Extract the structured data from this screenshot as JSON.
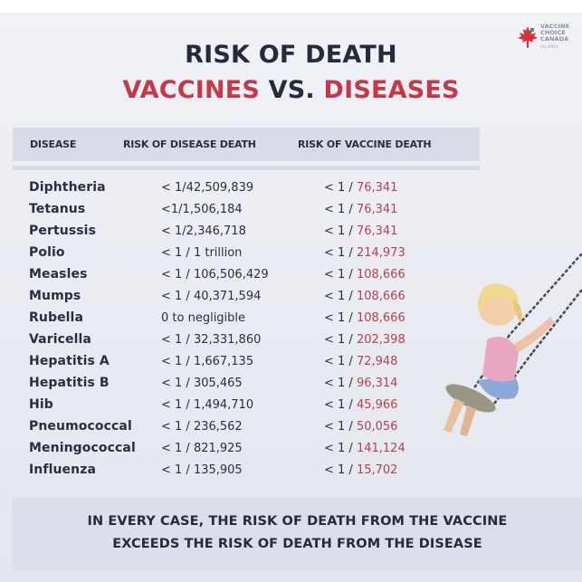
{
  "logo": {
    "line1": "VACCINE",
    "line2": "CHOICE",
    "line3": "CANADA",
    "line4": "ALLIANCE",
    "leaf_color": "#d9303a",
    "leaf_accent": "#3aa15a"
  },
  "title": {
    "line1": "RISK OF DEATH",
    "vaccines": "VACCINES",
    "vs": " VS. ",
    "diseases": "DISEASES"
  },
  "table": {
    "headers": {
      "disease": "DISEASE",
      "disease_risk": "RISK OF DISEASE DEATH",
      "vaccine_risk": "RISK OF VACCINE DEATH"
    },
    "rows": [
      {
        "disease": "Diphtheria",
        "disease_risk": "< 1/42,509,839",
        "vaccine_prefix": "< 1 / ",
        "vaccine_value": "76,341"
      },
      {
        "disease": "Tetanus",
        "disease_risk": "<1/1,506,184",
        "vaccine_prefix": "< 1 / ",
        "vaccine_value": "76,341"
      },
      {
        "disease": "Pertussis",
        "disease_risk": "< 1/2,346,718",
        "vaccine_prefix": "< 1 / ",
        "vaccine_value": "76,341"
      },
      {
        "disease": "Polio",
        "disease_risk": "< 1 / 1 trillion",
        "vaccine_prefix": "< 1 / ",
        "vaccine_value": "214,973"
      },
      {
        "disease": "Measles",
        "disease_risk": "< 1 / 106,506,429",
        "vaccine_prefix": "< 1 / ",
        "vaccine_value": "108,666"
      },
      {
        "disease": "Mumps",
        "disease_risk": "< 1 / 40,371,594",
        "vaccine_prefix": "< 1 / ",
        "vaccine_value": "108,666"
      },
      {
        "disease": "Rubella",
        "disease_risk": "0 to negligible",
        "vaccine_prefix": "< 1 / ",
        "vaccine_value": "108,666"
      },
      {
        "disease": "Varicella",
        "disease_risk": "< 1 / 32,331,860",
        "vaccine_prefix": "< 1 / ",
        "vaccine_value": "202,398"
      },
      {
        "disease": "Hepatitis A",
        "disease_risk": "< 1 / 1,667,135",
        "vaccine_prefix": "< 1 / ",
        "vaccine_value": "72,948"
      },
      {
        "disease": "Hepatitis B",
        "disease_risk": "< 1 / 305,465",
        "vaccine_prefix": "< 1 / ",
        "vaccine_value": "96,314"
      },
      {
        "disease": "Hib",
        "disease_risk": "< 1 / 1,494,710",
        "vaccine_prefix": "< 1 / ",
        "vaccine_value": "45,966"
      },
      {
        "disease": "Pneumococcal",
        "disease_risk": "< 1 / 236,562",
        "vaccine_prefix": "< 1 / ",
        "vaccine_value": "50,056"
      },
      {
        "disease": "Meningococcal",
        "disease_risk": "< 1 / 821,925",
        "vaccine_prefix": "< 1 / ",
        "vaccine_value": "141,124"
      },
      {
        "disease": "Influenza",
        "disease_risk": "< 1 / 135,905",
        "vaccine_prefix": "< 1 / ",
        "vaccine_value": "15,702"
      }
    ]
  },
  "footer": {
    "line1": "IN EVERY CASE, THE RISK OF DEATH FROM THE VACCINE",
    "line2": "EXCEEDS THE RISK OF DEATH FROM THE DISEASE"
  },
  "colors": {
    "accent_red": "#c23a48",
    "text_dark": "#262a3e",
    "header_band": "#d8dbe7"
  }
}
